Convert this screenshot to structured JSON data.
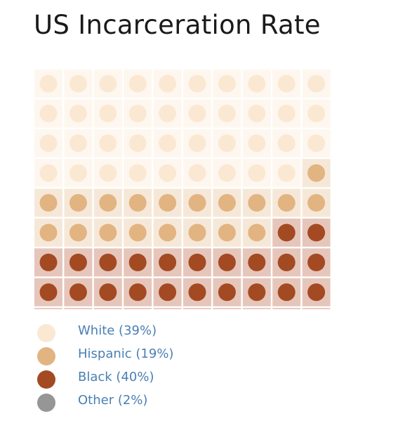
{
  "chart_data": {
    "type": "waffle",
    "title": "US Incarceration Rate",
    "grid": {
      "rows": 10,
      "cols": 10
    },
    "fill_order": "row-major from top-left",
    "categories": [
      {
        "name": "White",
        "percent": 39,
        "cells": 39,
        "label": "White (39%)",
        "dot_color": "#fbe8d3",
        "bg_color": "#fef7ef"
      },
      {
        "name": "Hispanic",
        "percent": 19,
        "cells": 19,
        "label": "Hispanic (19%)",
        "dot_color": "#e2b482",
        "bg_color": "#f6e8d8"
      },
      {
        "name": "Black",
        "percent": 40,
        "cells": 40,
        "label": "Black (40%)",
        "dot_color": "#a34a23",
        "bg_color": "#e6c6bb"
      },
      {
        "name": "Other",
        "percent": 2,
        "cells": 2,
        "label": "Other (2%)",
        "dot_color": "#969696",
        "bg_color": "#dedede"
      }
    ]
  }
}
